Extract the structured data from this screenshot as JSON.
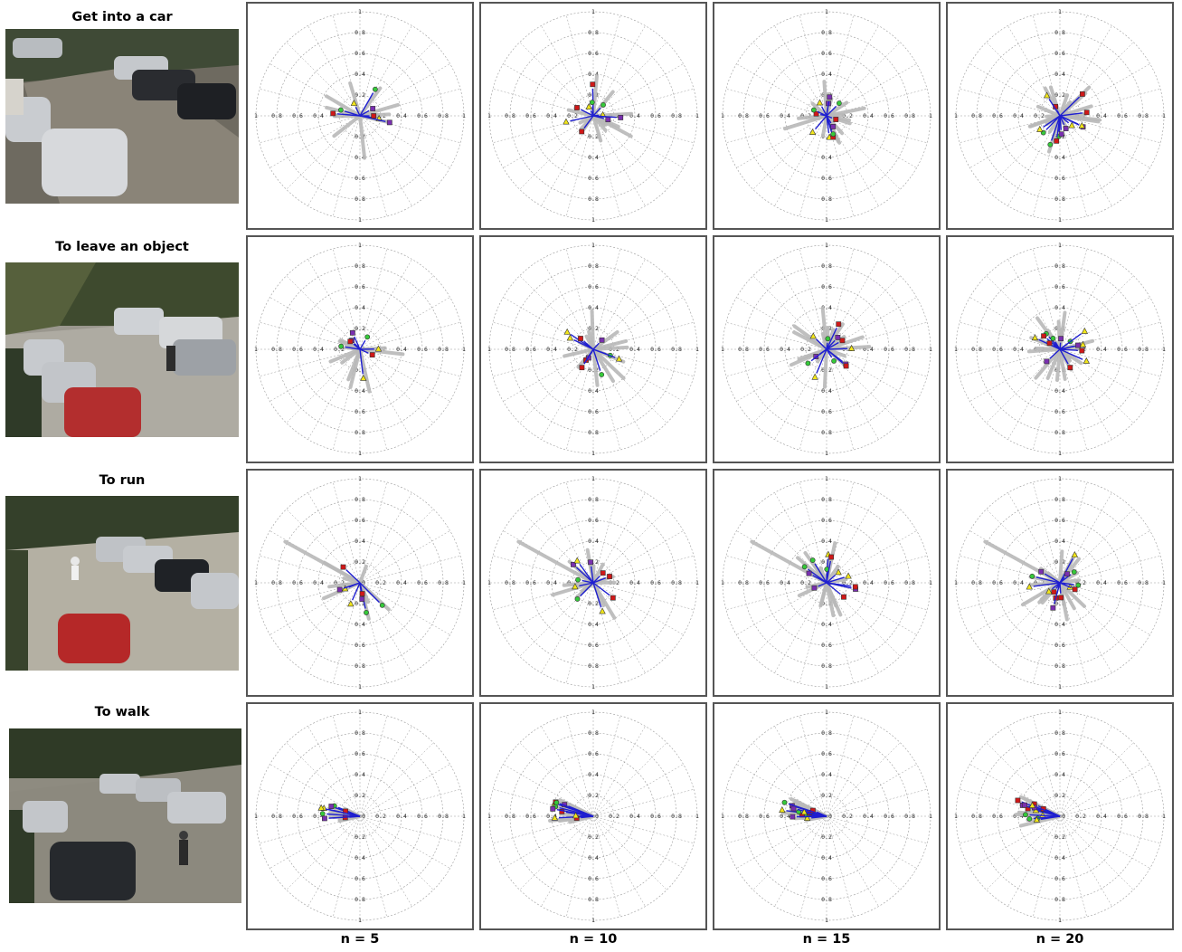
{
  "rows": [
    {
      "title": "Get into a car"
    },
    {
      "title": "To leave an object"
    },
    {
      "title": "To run"
    },
    {
      "title": "To walk"
    }
  ],
  "columns": [
    {
      "label": "n = 5"
    },
    {
      "label": "n = 10"
    },
    {
      "label": "n = 15"
    },
    {
      "label": "n = 20"
    }
  ],
  "polar_ticks": [
    "1",
    "0.8",
    "0.6",
    "0.4",
    "0.2",
    "0"
  ],
  "colors": {
    "vector": "#1f1fd0",
    "bar": "#b9b9b9",
    "red_marker": "#d01818",
    "yellow_marker": "#f2e61a",
    "green_marker": "#36c93a",
    "purple_marker": "#7a2fb0",
    "grid": "#9a9a9a"
  }
}
